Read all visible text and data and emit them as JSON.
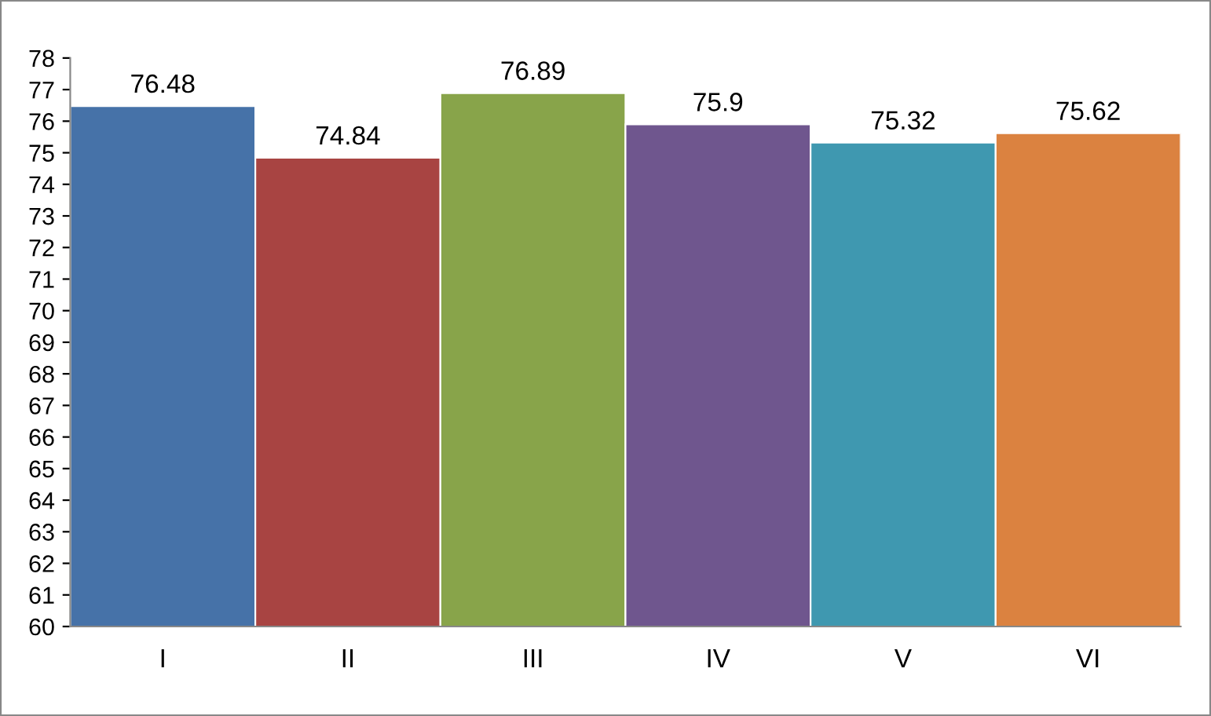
{
  "chart_data": {
    "type": "bar",
    "categories": [
      "I",
      "II",
      "III",
      "IV",
      "V",
      "VI"
    ],
    "values": [
      76.48,
      74.84,
      76.89,
      75.9,
      75.32,
      75.62
    ],
    "colors": [
      "#4672a8",
      "#a84442",
      "#88a44a",
      "#6f568e",
      "#3f98b0",
      "#db8240"
    ],
    "ylim": [
      60,
      78
    ],
    "yticks": [
      60,
      61,
      62,
      63,
      64,
      65,
      66,
      67,
      68,
      69,
      70,
      71,
      72,
      73,
      74,
      75,
      76,
      77,
      78
    ],
    "data_labels": true,
    "grid": false,
    "legend": false
  }
}
